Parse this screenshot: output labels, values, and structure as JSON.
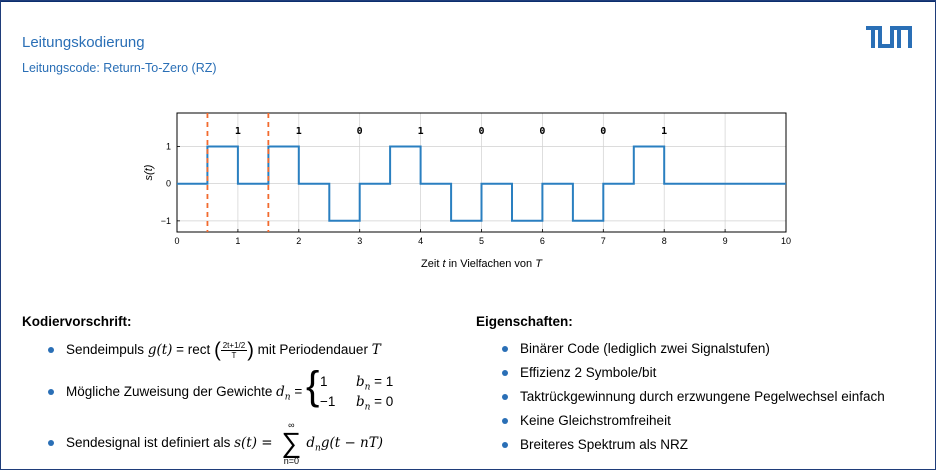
{
  "header": {
    "title": "Leitungskodierung",
    "subtitle": "Leitungscode: Return-To-Zero (RZ)"
  },
  "colors": {
    "accent": "#2a6fb6",
    "signal": "#2a7fc0",
    "marker": "#f26a2e",
    "grid": "#d0d0d0"
  },
  "chart_data": {
    "type": "line",
    "step": true,
    "ylabel": "s(t)",
    "xlabel_parts": {
      "pre": "Zeit ",
      "var": "t",
      "mid": " in Vielfachen von ",
      "var2": "T"
    },
    "xlim": [
      0,
      10
    ],
    "ylim": [
      -1.3,
      1.9
    ],
    "x_ticks": [
      "0",
      "1",
      "2",
      "3",
      "4",
      "5",
      "6",
      "7",
      "8",
      "9",
      "10"
    ],
    "y_ticks": [
      {
        "value": 1,
        "label": "1"
      },
      {
        "value": 0,
        "label": "0"
      },
      {
        "value": -1,
        "label": "−1"
      }
    ],
    "bits": [
      "1",
      "1",
      "0",
      "1",
      "0",
      "0",
      "0",
      "1"
    ],
    "grid": true,
    "series": [
      {
        "x": [
          0,
          0.5,
          0.5,
          1,
          1,
          1.5,
          1.5,
          2,
          2,
          2.5,
          2.5,
          3,
          3,
          3.5,
          3.5,
          4,
          4,
          4.5,
          4.5,
          5,
          5,
          5.5,
          5.5,
          6,
          6,
          6.5,
          6.5,
          7,
          7,
          7.5,
          7.5,
          8,
          8,
          10
        ],
        "y": [
          0,
          0,
          1,
          1,
          0,
          0,
          1,
          1,
          0,
          0,
          -1,
          -1,
          0,
          0,
          1,
          1,
          0,
          0,
          -1,
          -1,
          0,
          0,
          -1,
          -1,
          0,
          0,
          -1,
          -1,
          0,
          0,
          1,
          1,
          0,
          0
        ]
      }
    ],
    "markers_x": [
      0.5,
      1.5
    ]
  },
  "left": {
    "heading": "Kodiervorschrift:",
    "item1": {
      "pre": "Sendeimpuls ",
      "g": "g(t)",
      "eq": " = rect ",
      "num": "2t+1/2",
      "den": "T",
      "post": " mit Periodendauer ",
      "T": "T"
    },
    "item2": {
      "pre": "Mögliche Zuweisung der Gewichte ",
      "dn": "d",
      "sub": "n",
      "eq": " =",
      "row1_val": "1",
      "row1_cond": "b",
      "row1_sub": "n",
      "row1_rhs": " = 1",
      "row2_val": "−1",
      "row2_cond": "b",
      "row2_sub": "n",
      "row2_rhs": " = 0"
    },
    "item3": {
      "pre": "Sendesignal ist definiert als ",
      "lhs": "s(t) =",
      "top": "∞",
      "sig": "∑",
      "bot": "n=0",
      "rhs": "d",
      "rhs_sub": "n",
      "rhs2": "g(t − nT)"
    }
  },
  "right": {
    "heading": "Eigenschaften:",
    "items": [
      "Binärer Code (lediglich zwei Signalstufen)",
      "Effizienz 2 Symbole/bit",
      "Taktrückgewinnung durch erzwungene Pegelwechsel einfach",
      "Keine Gleichstromfreiheit",
      "Breiteres Spektrum als NRZ"
    ]
  }
}
